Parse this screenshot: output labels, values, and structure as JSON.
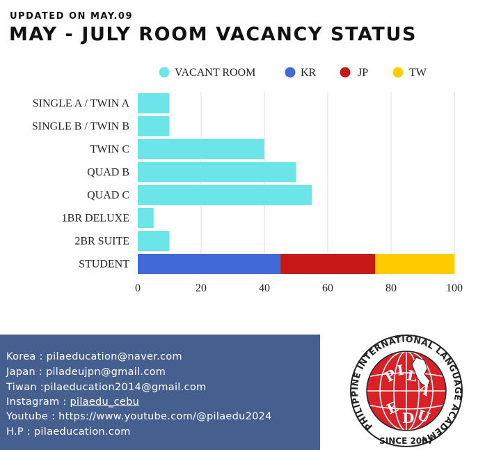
{
  "header": {
    "updated": "UPDATED ON MAY.09",
    "title": "MAY - JULY ROOM VACANCY STATUS"
  },
  "chart_data": {
    "type": "bar",
    "orientation": "horizontal",
    "stacked": true,
    "categories": [
      "SINGLE A / TWIN A",
      "SINGLE B / TWIN B",
      "TWIN C",
      "QUAD B",
      "QUAD C",
      "1BR DELUXE",
      "2BR SUITE",
      "STUDENT"
    ],
    "series": [
      {
        "name": "VACANT ROOM",
        "color": "#6ce5e8",
        "values": [
          10,
          10,
          40,
          50,
          55,
          5,
          10,
          0
        ]
      },
      {
        "name": "KR",
        "color": "#4169d8",
        "values": [
          0,
          0,
          0,
          0,
          0,
          0,
          0,
          45
        ]
      },
      {
        "name": "JP",
        "color": "#c81919",
        "values": [
          0,
          0,
          0,
          0,
          0,
          0,
          0,
          30
        ]
      },
      {
        "name": "TW",
        "color": "#ffcc00",
        "values": [
          0,
          0,
          0,
          0,
          0,
          0,
          0,
          25
        ]
      }
    ],
    "xlim": [
      0,
      100
    ],
    "xticks": [
      0,
      20,
      40,
      60,
      80,
      100
    ],
    "grid": true,
    "legend_position": "top-right"
  },
  "contacts": [
    {
      "label": "Korea : ",
      "value": "pilaeducation@naver.com",
      "underline": false
    },
    {
      "label": "Japan : ",
      "value": "piladeujpn@gmail.com",
      "underline": false
    },
    {
      "label": "Tiwan :",
      "value": "pilaeducation2014@gmail.com",
      "underline": false
    },
    {
      "label": "Instagram : ",
      "value": "pilaedu_cebu",
      "underline": true
    },
    {
      "label": "Youtube : ",
      "value": "https://www.youtube.com/@pilaedu2024",
      "underline": false
    },
    {
      "label": "H.P : ",
      "value": "pilaeducation.com",
      "underline": false
    }
  ],
  "logo": {
    "ring_text": "PHILIPPINE INTERNATIONAL LANGUAGE ACADEMY",
    "since": "SINCE 2007",
    "globe_text": "PILAEDU",
    "colors": {
      "red": "#d92128",
      "ring": "#ffffff",
      "ink": "#111111"
    }
  }
}
